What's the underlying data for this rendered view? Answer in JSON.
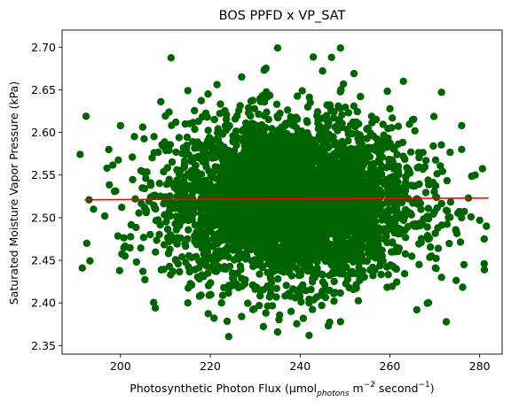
{
  "chart_data": {
    "type": "scatter",
    "title": "BOS PPFD x VP_SAT",
    "xlabel": {
      "prefix": "Photosynthetic Photon Flux (µmol",
      "subscript": "photons",
      "middle": " m",
      "sup1": "−2",
      "middle2": " second",
      "sup2": "−1",
      "suffix": ")"
    },
    "ylabel": "Saturated Moisture Vapor Pressure (kPa)",
    "xlim": [
      187,
      285
    ],
    "ylim": [
      2.34,
      2.72
    ],
    "xticks": [
      200,
      220,
      240,
      260,
      280
    ],
    "yticks": [
      2.35,
      2.4,
      2.45,
      2.5,
      2.55,
      2.6,
      2.65,
      2.7
    ],
    "grid": false,
    "colors": {
      "points": "#006400",
      "fit_line": "#ff0000"
    },
    "cloud": {
      "description_stats": true,
      "x_mean": 238,
      "x_sd": 13.5,
      "y_mean": 2.52,
      "y_sd": 0.047,
      "n": 4000
    },
    "outlier_points": [
      [
        191.5,
        2.441
      ],
      [
        192.5,
        2.47
      ],
      [
        193,
        2.521
      ],
      [
        194,
        2.51
      ],
      [
        196.5,
        2.502
      ],
      [
        201,
        2.455
      ],
      [
        209,
        2.636
      ],
      [
        215,
        2.649
      ],
      [
        219.5,
        2.645
      ],
      [
        221.5,
        2.656
      ],
      [
        227,
        2.665
      ],
      [
        232,
        2.673
      ],
      [
        235,
        2.699
      ],
      [
        245,
        2.672
      ],
      [
        247,
        2.688
      ],
      [
        249,
        2.699
      ],
      [
        252,
        2.669
      ],
      [
        263,
        2.66
      ],
      [
        271.5,
        2.647
      ],
      [
        276,
        2.608
      ],
      [
        279,
        2.55
      ],
      [
        280,
        2.497
      ],
      [
        281.5,
        2.49
      ],
      [
        281,
        2.475
      ],
      [
        281,
        2.446
      ],
      [
        276.5,
        2.445
      ],
      [
        271.5,
        2.43
      ],
      [
        266,
        2.392
      ],
      [
        249,
        2.378
      ],
      [
        242,
        2.362
      ],
      [
        235,
        2.366
      ],
      [
        238,
        2.39
      ],
      [
        227,
        2.384
      ],
      [
        222.5,
        2.4
      ],
      [
        215,
        2.4
      ],
      [
        205,
        2.437
      ],
      [
        277.5,
        2.523
      ],
      [
        276,
        2.58
      ],
      [
        200,
        2.608
      ],
      [
        197,
        2.558
      ]
    ],
    "fit_line": {
      "x": [
        192,
        282
      ],
      "y": [
        2.521,
        2.523
      ]
    }
  }
}
